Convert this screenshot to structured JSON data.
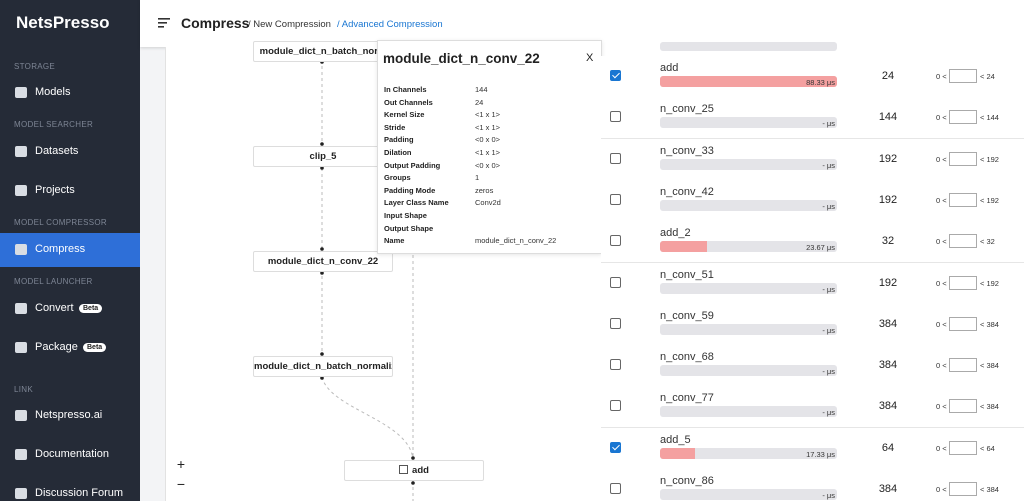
{
  "sidebar": {
    "logo": "NetsPresso",
    "sections": [
      {
        "heading": "STORAGE",
        "items": [
          {
            "label": "Models"
          }
        ]
      },
      {
        "heading": "MODEL SEARCHER",
        "items": [
          {
            "label": "Datasets"
          },
          {
            "label": "Projects"
          }
        ]
      },
      {
        "heading": "MODEL COMPRESSOR",
        "items": [
          {
            "label": "Compress",
            "active": true
          }
        ]
      },
      {
        "heading": "MODEL LAUNCHER",
        "items": [
          {
            "label": "Convert",
            "badge": "Beta"
          },
          {
            "label": "Package",
            "badge": "Beta"
          }
        ]
      },
      {
        "heading": "LINK",
        "items": [
          {
            "label": "Netspresso.ai"
          },
          {
            "label": "Documentation"
          },
          {
            "label": "Discussion Forum"
          }
        ]
      }
    ]
  },
  "header": {
    "title": "Compress",
    "breadcrumbs": [
      "/ New Compression",
      "/ Advanced Compression"
    ]
  },
  "graph": {
    "nodes": [
      {
        "label": "module_dict_n_batch_norm"
      },
      {
        "label": "clip_5"
      },
      {
        "label": "module_dict_n_conv_22"
      },
      {
        "label": "module_dict_n_batch_normaliz"
      },
      {
        "label": "add",
        "checkbox": true
      }
    ],
    "zoom_in": "+",
    "zoom_out": "−"
  },
  "popup": {
    "title": "module_dict_n_conv_22",
    "close": "X",
    "properties": [
      {
        "key": "In Channels",
        "value": "144"
      },
      {
        "key": "Out Channels",
        "value": "24"
      },
      {
        "key": "Kernel Size",
        "value": "<1 x 1>"
      },
      {
        "key": "Stride",
        "value": "<1 x 1>"
      },
      {
        "key": "Padding",
        "value": "<0 x 0>"
      },
      {
        "key": "Dilation",
        "value": "<1 x 1>"
      },
      {
        "key": "Output Padding",
        "value": "<0 x 0>"
      },
      {
        "key": "Groups",
        "value": "1"
      },
      {
        "key": "Padding Mode",
        "value": "zeros"
      },
      {
        "key": "Layer Class Name",
        "value": "Conv2d"
      },
      {
        "key": "Input Shape"
      },
      {
        "key": "Output Shape"
      },
      {
        "key": "Name",
        "value": "module_dict_n_conv_22"
      }
    ]
  },
  "layers": [
    {
      "name": "add",
      "checked": true,
      "latency": 88.33,
      "latency_label": "88.33 μs",
      "channels": 24,
      "min_label": "0 <",
      "max_label": "< 24"
    },
    {
      "name": "n_conv_25",
      "checked": false,
      "latency": null,
      "latency_label": "- μs",
      "channels": 144,
      "min_label": "0 <",
      "max_label": "< 144"
    },
    {
      "name": "n_conv_33",
      "checked": false,
      "latency": null,
      "latency_label": "- μs",
      "channels": 192,
      "min_label": "0 <",
      "max_label": "< 192"
    },
    {
      "name": "n_conv_42",
      "checked": false,
      "latency": null,
      "latency_label": "- μs",
      "channels": 192,
      "min_label": "0 <",
      "max_label": "< 192"
    },
    {
      "name": "add_2",
      "checked": false,
      "latency": 23.67,
      "latency_label": "23.67 μs",
      "channels": 32,
      "min_label": "0 <",
      "max_label": "< 32"
    },
    {
      "name": "n_conv_51",
      "checked": false,
      "latency": null,
      "latency_label": "- μs",
      "channels": 192,
      "min_label": "0 <",
      "max_label": "< 192"
    },
    {
      "name": "n_conv_59",
      "checked": false,
      "latency": null,
      "latency_label": "- μs",
      "channels": 384,
      "min_label": "0 <",
      "max_label": "< 384"
    },
    {
      "name": "n_conv_68",
      "checked": false,
      "latency": null,
      "latency_label": "- μs",
      "channels": 384,
      "min_label": "0 <",
      "max_label": "< 384"
    },
    {
      "name": "n_conv_77",
      "checked": false,
      "latency": null,
      "latency_label": "- μs",
      "channels": 384,
      "min_label": "0 <",
      "max_label": "< 384"
    },
    {
      "name": "add_5",
      "checked": true,
      "latency": 17.33,
      "latency_label": "17.33 μs",
      "channels": 64,
      "min_label": "0 <",
      "max_label": "< 64"
    },
    {
      "name": "n_conv_86",
      "checked": false,
      "latency": null,
      "latency_label": "- μs",
      "channels": 384,
      "min_label": "0 <",
      "max_label": "< 384"
    }
  ]
}
